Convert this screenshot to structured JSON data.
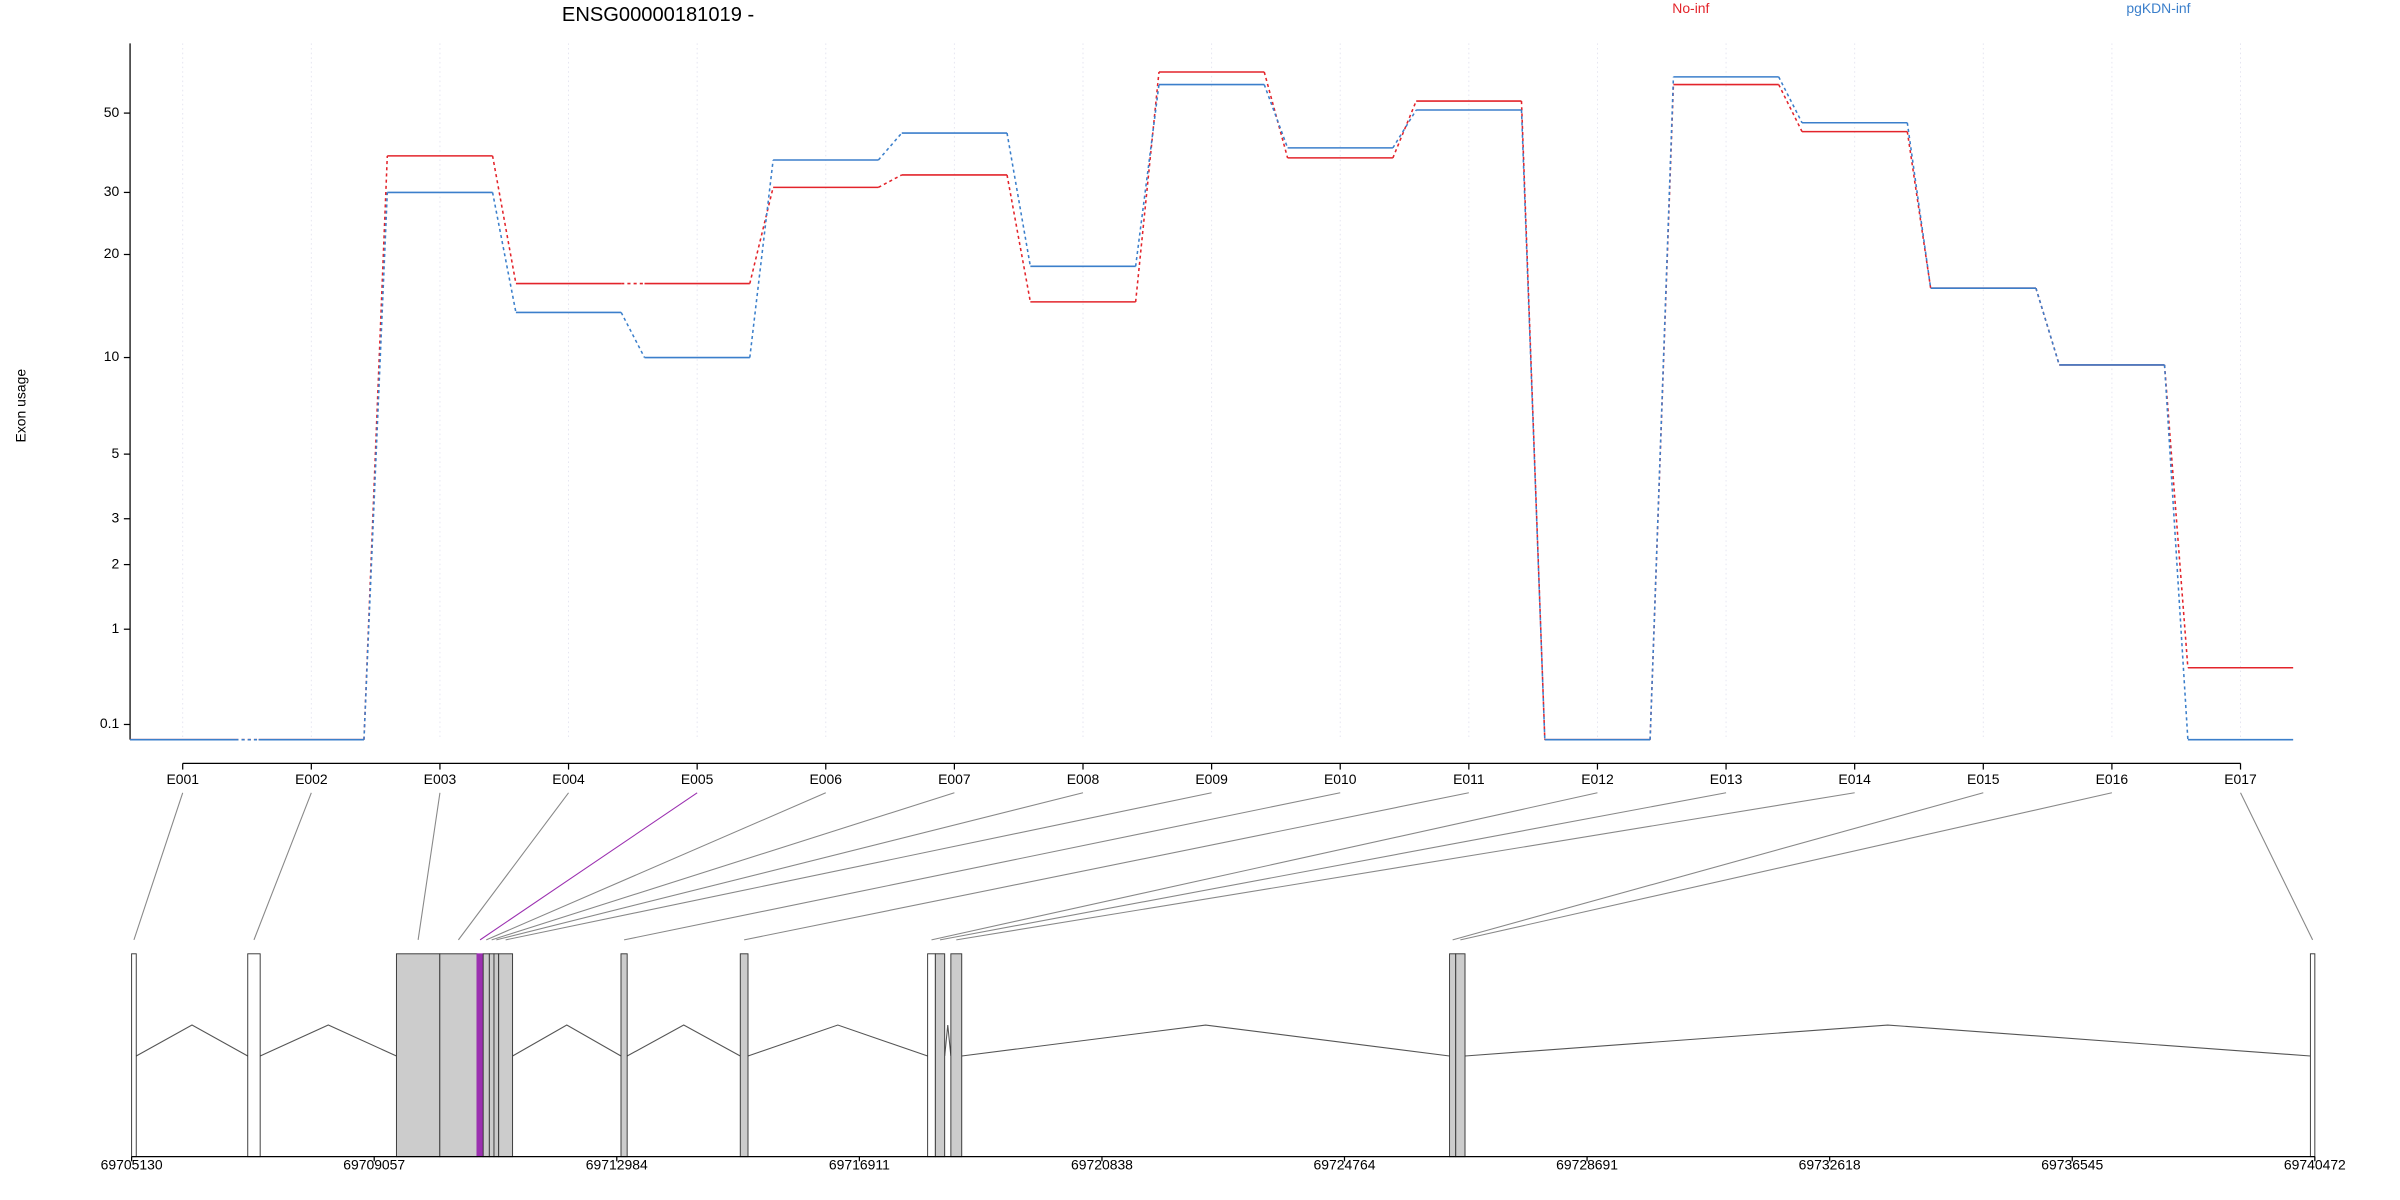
{
  "chart_data": [
    {
      "type": "line",
      "title": "ENSG00000181019 -",
      "y_label": "Exon usage",
      "yscale": "log1p",
      "ylim": [
        0,
        78
      ],
      "yticks": [
        0.1,
        1,
        2,
        3,
        5,
        10,
        20,
        30,
        50
      ],
      "grid": "x",
      "legend": "top-right",
      "categories": [
        "E001",
        "E002",
        "E003",
        "E004",
        "E005",
        "E006",
        "E007",
        "E008",
        "E009",
        "E010",
        "E011",
        "E012",
        "E013",
        "E014",
        "E015",
        "E016",
        "E017"
      ],
      "series": [
        {
          "name": "No-inf",
          "color": "#e3242b",
          "values": [
            0,
            0,
            38,
            16.5,
            16.5,
            31,
            33.6,
            14.6,
            65,
            37.5,
            54,
            0,
            60,
            44.4,
            16,
            9.5,
            0.57
          ]
        },
        {
          "name": "pgKDN-inf",
          "color": "#3b7fcb",
          "values": [
            0,
            0,
            30,
            13.6,
            10,
            37,
            44,
            18.5,
            60,
            40,
            51,
            0,
            63,
            47,
            16,
            9.5,
            0
          ]
        }
      ]
    },
    {
      "type": "gene-model",
      "xlim": [
        69705130,
        69740472
      ],
      "xticks": [
        69705130,
        69709057,
        69712984,
        69716911,
        69720838,
        69724764,
        69728691,
        69732618,
        69736545,
        69740472
      ],
      "starts": [
        69705130,
        69707010,
        69709417,
        69710119,
        69710721,
        69710821,
        69710921,
        69710996,
        69711072,
        69713052,
        69714983,
        69718016,
        69718141,
        69718392,
        69726465,
        69726565,
        69740400
      ],
      "ends": [
        69705205,
        69707211,
        69710119,
        69710721,
        69710821,
        69710921,
        69710996,
        69711072,
        69711297,
        69713152,
        69715108,
        69718141,
        69718292,
        69718568,
        69726565,
        69726715,
        69740472
      ],
      "colors": [
        "#ffffff",
        "#ffffff",
        "#cccccc",
        "#cccccc",
        "#9b30b0",
        "#cccccc",
        "#cccccc",
        "#cccccc",
        "#cccccc",
        "#cccccc",
        "#cccccc",
        "#ffffff",
        "#cccccc",
        "#cccccc",
        "#cccccc",
        "#cccccc",
        "#ffffff"
      ]
    }
  ]
}
